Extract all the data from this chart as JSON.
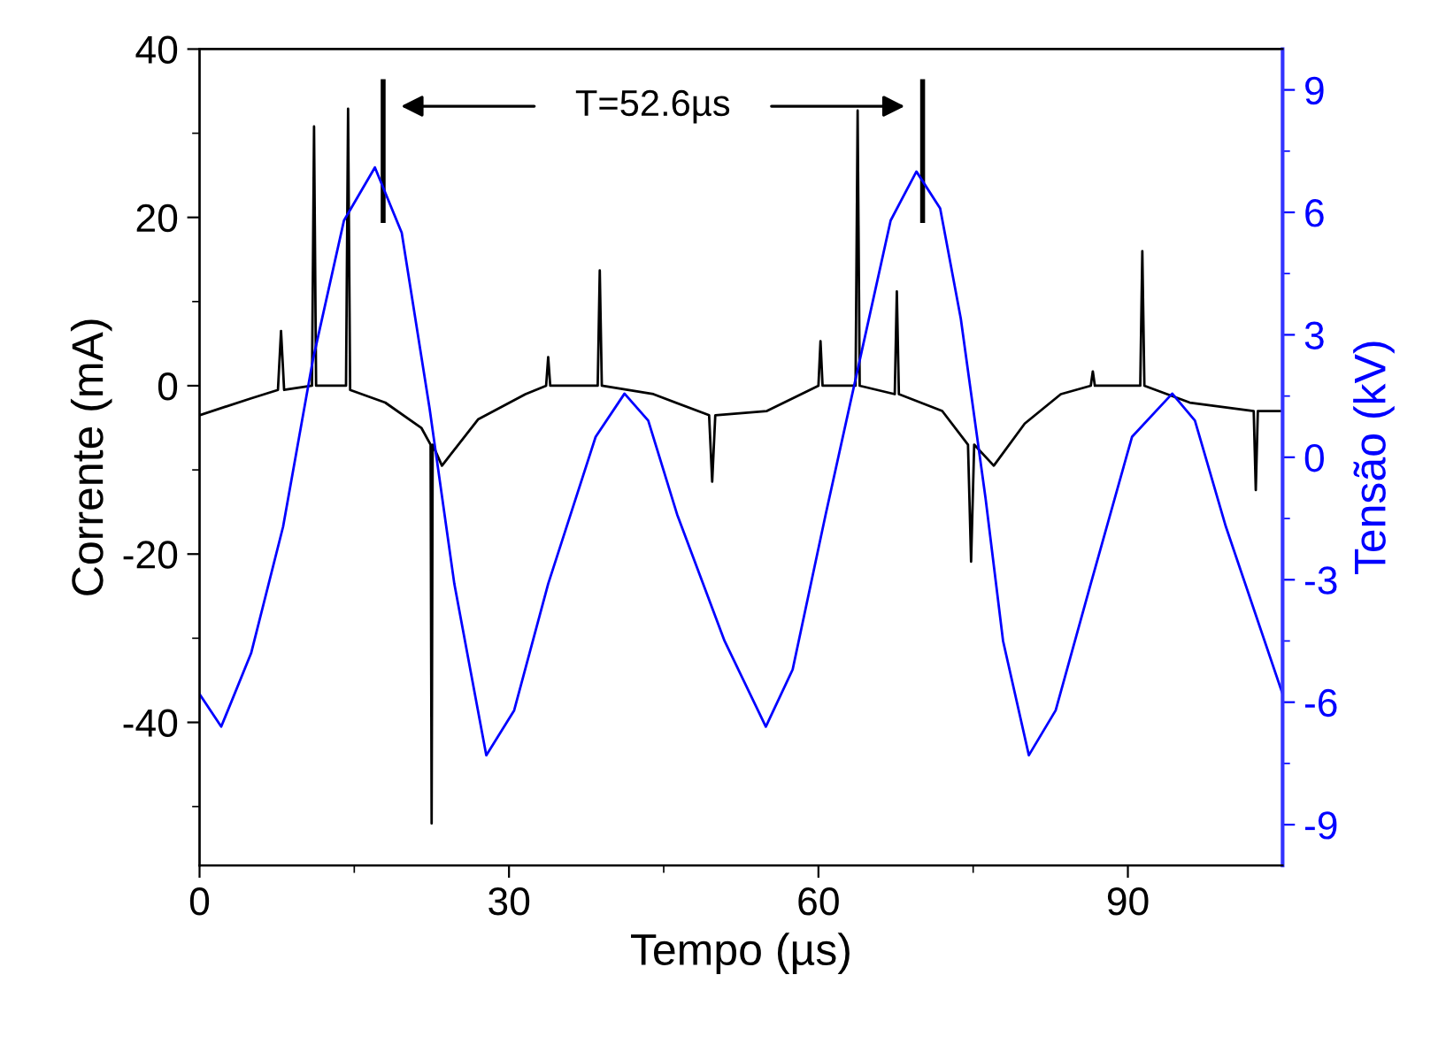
{
  "chart_data": {
    "type": "line",
    "xlabel": "Tempo (µs)",
    "ylabel": "Corrente (mA)",
    "y2label": "Tensão (kV)",
    "xlim": [
      0,
      105
    ],
    "xticks": [
      0,
      {
        "value": 15,
        "label": null
      },
      30,
      {
        "value": 45,
        "label": null
      },
      60,
      {
        "value": 75,
        "label": null
      },
      90
    ],
    "ylim": [
      -57,
      40
    ],
    "yticks": [
      {
        "value": -50,
        "label": null
      },
      -40,
      {
        "value": -30,
        "label": null
      },
      -20,
      {
        "value": -10,
        "label": null
      },
      0,
      {
        "value": 10,
        "label": null
      },
      20,
      {
        "value": 30,
        "label": null
      },
      40
    ],
    "y2lim": [
      -10,
      10
    ],
    "y2ticks": [
      -9,
      {
        "value": -7.5,
        "label": null
      },
      -6,
      {
        "value": -4.5,
        "label": null
      },
      -3,
      {
        "value": -1.5,
        "label": null
      },
      0,
      {
        "value": 1.5,
        "label": null
      },
      3,
      {
        "value": 4.5,
        "label": null
      },
      6,
      {
        "value": 7.5,
        "label": null
      },
      9
    ],
    "grid": false,
    "series": [
      {
        "color": "#000000",
        "x": [
          0,
          5,
          7.6,
          7.9,
          8.2,
          10.9,
          11.1,
          11.3,
          14.2,
          14.4,
          14.6,
          18,
          21.5,
          22.4,
          22.5,
          22.6,
          23.5,
          27,
          31.6,
          33.6,
          33.8,
          34,
          38.6,
          38.8,
          39,
          44,
          49.4,
          49.7,
          50,
          55,
          60,
          60.2,
          60.4,
          63.6,
          63.8,
          64,
          67.4,
          67.6,
          67.8,
          72,
          74.5,
          74.8,
          75.1,
          77,
          80,
          83.5,
          86.4,
          86.6,
          86.8,
          91.2,
          91.4,
          91.6,
          96,
          102.2,
          102.4,
          102.6,
          105
        ],
        "values": [
          -3.5,
          -1.5,
          -0.5,
          6.5,
          -0.5,
          0,
          30.8,
          0,
          0,
          32.9,
          -0.5,
          -2,
          -5,
          -7,
          -52,
          -7,
          -9.5,
          -4,
          -1,
          0,
          3.4,
          0,
          0,
          13.7,
          0,
          -1,
          -3.5,
          -11.4,
          -3.5,
          -3,
          0,
          5.3,
          0,
          0,
          32.7,
          0,
          -1,
          11.2,
          -1,
          -3,
          -7,
          -20.9,
          -7,
          -9.5,
          -4.5,
          -1,
          0,
          1.7,
          0,
          0,
          16,
          0,
          -2,
          -3,
          -12.4,
          -3,
          -3
        ]
      },
      {
        "color": "#0000ff",
        "axis": "y2",
        "x": [
          0,
          2.1,
          5,
          8.1,
          11,
          14,
          17,
          19.6,
          22.3,
          24.7,
          27.8,
          30.5,
          33.8,
          38.4,
          41.2,
          43.5,
          46.3,
          50.9,
          54.9,
          57.5,
          60.7,
          64.2,
          67,
          69.5,
          71.8,
          73.8,
          76.2,
          77.9,
          80.4,
          83,
          86.4,
          90.4,
          94.3,
          96.5,
          99.5,
          105
        ],
        "values": [
          -5.8,
          -6.6,
          -4.8,
          -1.7,
          2.4,
          5.8,
          7.1,
          5.5,
          1.2,
          -3.1,
          -7.3,
          -6.2,
          -3.1,
          0.5,
          1.56,
          0.9,
          -1.4,
          -4.5,
          -6.6,
          -5.2,
          -1.4,
          2.6,
          5.8,
          7.0,
          6.1,
          3.4,
          -1.0,
          -4.5,
          -7.3,
          -6.2,
          -3.1,
          0.5,
          1.56,
          0.9,
          -1.7,
          -5.8
        ]
      }
    ],
    "ref_lines": [
      {
        "axis": "x",
        "value": 17.8,
        "label": null,
        "color": "#000000"
      },
      {
        "axis": "x",
        "value": 70.1,
        "label": null,
        "color": "#000000"
      }
    ],
    "annotations": [
      "T=52.6µs"
    ]
  }
}
